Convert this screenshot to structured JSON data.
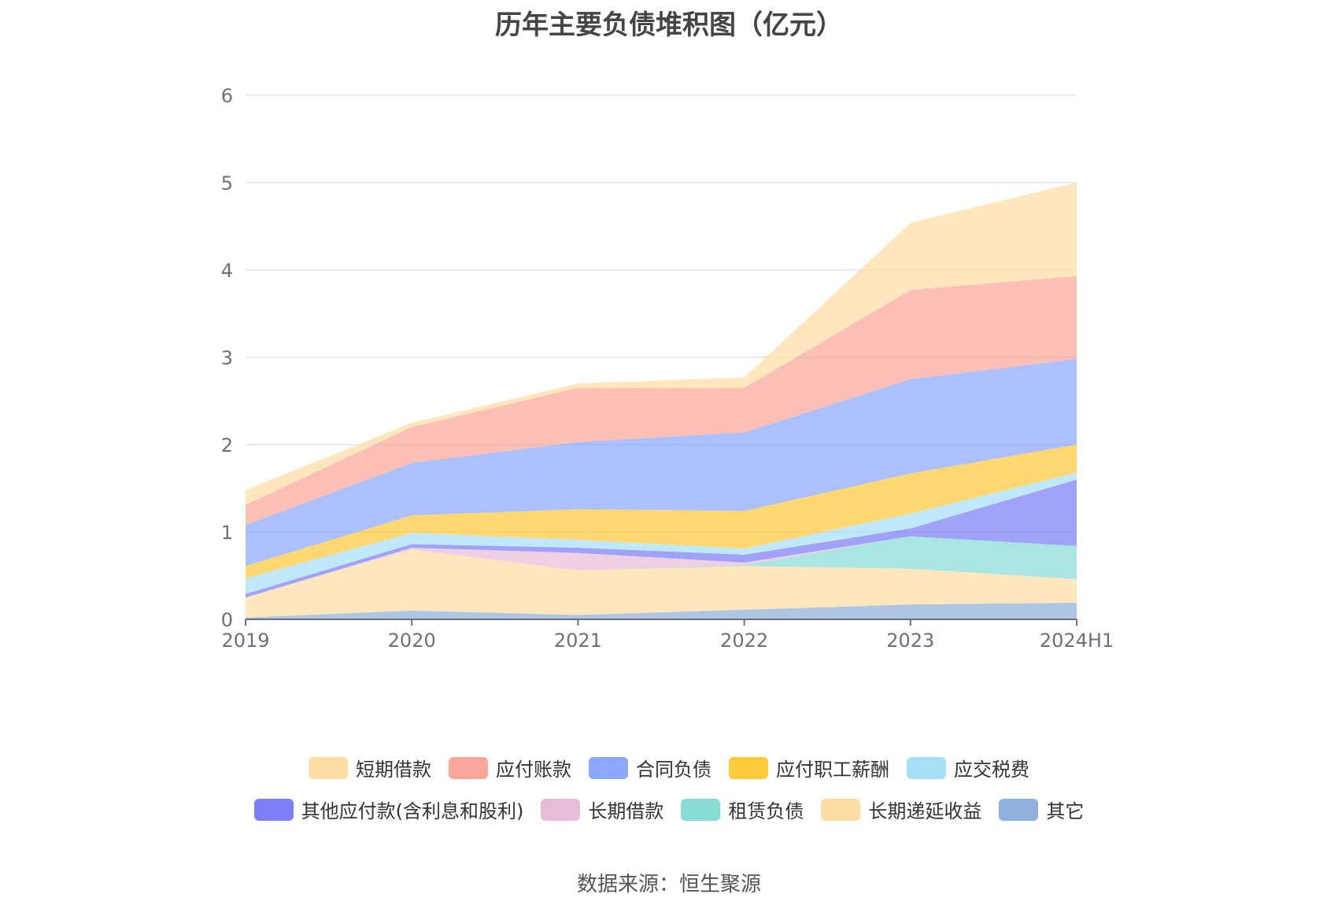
{
  "title": "历年主要负债堆积图（亿元）",
  "source": "数据来源：恒生聚源",
  "chart_data": {
    "type": "area",
    "stacked": true,
    "title": "历年主要负债堆积图（亿元）",
    "x": [
      "2019",
      "2020",
      "2021",
      "2022",
      "2023",
      "2024H1"
    ],
    "ylim": [
      0,
      6
    ],
    "yticks": [
      "0",
      "1",
      "2",
      "3",
      "4",
      "5",
      "6"
    ],
    "grid": true,
    "legend_position": "bottom",
    "series": [
      {
        "name": "其它",
        "color": "#8eb0dc",
        "values": [
          0.02,
          0.1,
          0.05,
          0.11,
          0.17,
          0.19
        ]
      },
      {
        "name": "长期递延收益",
        "color": "#ffdca2",
        "values": [
          0.23,
          0.7,
          0.51,
          0.5,
          0.41,
          0.27
        ]
      },
      {
        "name": "租赁负债",
        "color": "#88dcd6",
        "values": [
          0.0,
          0.0,
          0.0,
          0.01,
          0.37,
          0.38
        ]
      },
      {
        "name": "长期借款",
        "color": "#e8bcd8",
        "values": [
          0.0,
          0.02,
          0.2,
          0.03,
          0.0,
          0.0
        ]
      },
      {
        "name": "其他应付款(含利息和股利)",
        "color": "#7b7ef5",
        "values": [
          0.04,
          0.04,
          0.06,
          0.09,
          0.09,
          0.76
        ]
      },
      {
        "name": "应交税费",
        "color": "#a6e0f8",
        "values": [
          0.18,
          0.13,
          0.09,
          0.07,
          0.17,
          0.08
        ]
      },
      {
        "name": "应付职工薪酬",
        "color": "#ffc93c",
        "values": [
          0.14,
          0.2,
          0.35,
          0.43,
          0.46,
          0.32
        ]
      },
      {
        "name": "合同负债",
        "color": "#8aa8fc",
        "values": [
          0.47,
          0.6,
          0.77,
          0.9,
          1.08,
          0.98
        ]
      },
      {
        "name": "应付账款",
        "color": "#fba69a",
        "values": [
          0.23,
          0.41,
          0.62,
          0.51,
          1.02,
          0.95
        ]
      },
      {
        "name": "短期借款",
        "color": "#ffdca2",
        "values": [
          0.17,
          0.05,
          0.05,
          0.12,
          0.77,
          1.07
        ]
      }
    ],
    "legend": [
      [
        "短期借款",
        "应付账款",
        "合同负债",
        "应付职工薪酬",
        "应交税费"
      ],
      [
        "其他应付款(含利息和股利)",
        "长期借款",
        "租赁负债",
        "长期递延收益",
        "其它"
      ]
    ]
  }
}
